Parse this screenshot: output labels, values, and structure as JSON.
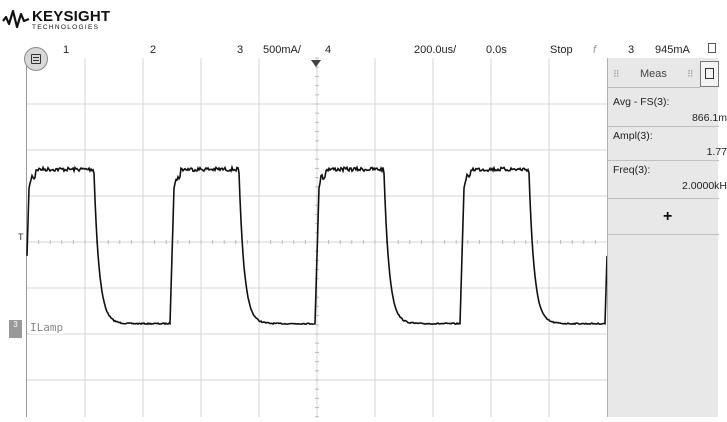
{
  "header": {
    "brand": "KEYSIGHT",
    "brand_sub": "TECHNOLOGIES"
  },
  "status_bar": {
    "ch1": "1",
    "ch2": "2",
    "ch3": "3",
    "ch3_scale": "500mA/",
    "ch4": "4",
    "timebase": "200.0us/",
    "delay": "0.0s",
    "run_state": "Stop",
    "trigger_symbol": "f",
    "trigger_source": "3",
    "trigger_level": "945mA"
  },
  "scope": {
    "trigger_level_marker": "T",
    "channel_marker": "3",
    "channel_label": "ILamp",
    "waveform": {
      "period_us": 500,
      "cycles_visible": 4,
      "high_level_fraction": 0.31,
      "low_level_fraction": 0.74
    }
  },
  "side_panel": {
    "title": "Meas",
    "measurements": [
      {
        "label": "Avg - FS(3):",
        "value": "866.1m"
      },
      {
        "label": "Ampl(3):",
        "value": "1.77"
      },
      {
        "label": "Freq(3):",
        "value": "2.0000kH"
      }
    ],
    "add_label": "+"
  }
}
